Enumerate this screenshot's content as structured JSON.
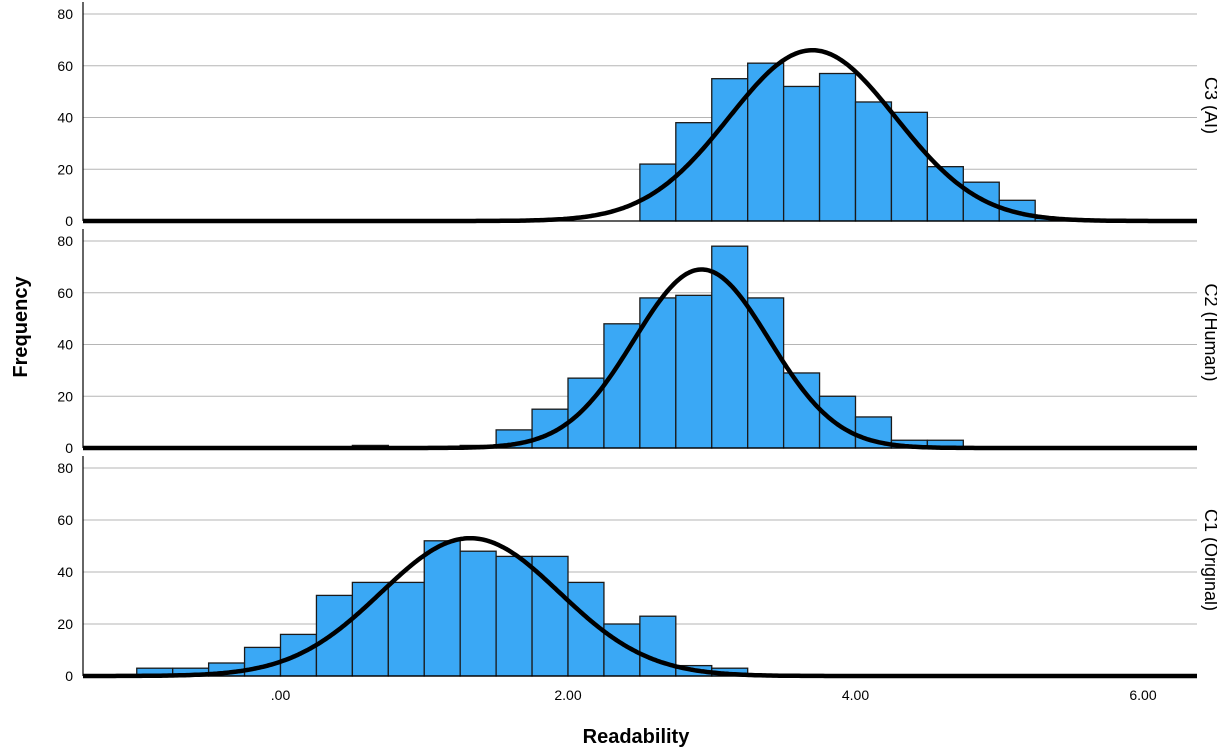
{
  "chart_data": {
    "type": "bar",
    "xlabel": "Readability",
    "ylabel": "Frequency",
    "x_ticks": [
      ".00",
      "2.00",
      "4.00",
      "6.00"
    ],
    "y_ticks": [
      "0",
      "20",
      "40",
      "60",
      "80"
    ],
    "xlim": [
      -0.5,
      6.0
    ],
    "ylim": [
      0,
      80
    ],
    "grid": true,
    "bin_width": 0.25,
    "colors": {
      "bar": "#3aa8f5",
      "bar_edge": "#1a1a1a",
      "curve": "#000000",
      "grid": "#b5b5b5"
    },
    "panels": [
      {
        "name": "C3 (AI)",
        "normal_curve": {
          "mean": 3.7,
          "sd": 0.58,
          "peak": 66
        },
        "bins": [
          {
            "x0": 2.5,
            "count": 22
          },
          {
            "x0": 2.75,
            "count": 38
          },
          {
            "x0": 3.0,
            "count": 55
          },
          {
            "x0": 3.25,
            "count": 61
          },
          {
            "x0": 3.5,
            "count": 52
          },
          {
            "x0": 3.75,
            "count": 57
          },
          {
            "x0": 4.0,
            "count": 46
          },
          {
            "x0": 4.25,
            "count": 42
          },
          {
            "x0": 4.5,
            "count": 21
          },
          {
            "x0": 4.75,
            "count": 15
          },
          {
            "x0": 5.0,
            "count": 8
          },
          {
            "x0": 5.25,
            "count": 1
          }
        ]
      },
      {
        "name": "C2 (Human)",
        "normal_curve": {
          "mean": 2.93,
          "sd": 0.47,
          "peak": 69
        },
        "bins": [
          {
            "x0": 0.5,
            "count": 1
          },
          {
            "x0": 1.25,
            "count": 1
          },
          {
            "x0": 1.5,
            "count": 7
          },
          {
            "x0": 1.75,
            "count": 15
          },
          {
            "x0": 2.0,
            "count": 27
          },
          {
            "x0": 2.25,
            "count": 48
          },
          {
            "x0": 2.5,
            "count": 58
          },
          {
            "x0": 2.75,
            "count": 59
          },
          {
            "x0": 3.0,
            "count": 78
          },
          {
            "x0": 3.25,
            "count": 58
          },
          {
            "x0": 3.5,
            "count": 29
          },
          {
            "x0": 3.75,
            "count": 20
          },
          {
            "x0": 4.0,
            "count": 12
          },
          {
            "x0": 4.25,
            "count": 3
          },
          {
            "x0": 4.5,
            "count": 3
          }
        ]
      },
      {
        "name": "C1 (Original)",
        "normal_curve": {
          "mean": 1.32,
          "sd": 0.62,
          "peak": 53
        },
        "bins": [
          {
            "x0": -1.0,
            "count": 3
          },
          {
            "x0": -0.75,
            "count": 3
          },
          {
            "x0": -0.5,
            "count": 5
          },
          {
            "x0": -0.25,
            "count": 11
          },
          {
            "x0": 0.0,
            "count": 16
          },
          {
            "x0": 0.25,
            "count": 31
          },
          {
            "x0": 0.5,
            "count": 36
          },
          {
            "x0": 0.75,
            "count": 36
          },
          {
            "x0": 1.0,
            "count": 52
          },
          {
            "x0": 1.25,
            "count": 48
          },
          {
            "x0": 1.5,
            "count": 46
          },
          {
            "x0": 1.75,
            "count": 46
          },
          {
            "x0": 2.0,
            "count": 36
          },
          {
            "x0": 2.25,
            "count": 20
          },
          {
            "x0": 2.5,
            "count": 23
          },
          {
            "x0": 2.75,
            "count": 4
          },
          {
            "x0": 3.0,
            "count": 3
          }
        ]
      }
    ]
  }
}
